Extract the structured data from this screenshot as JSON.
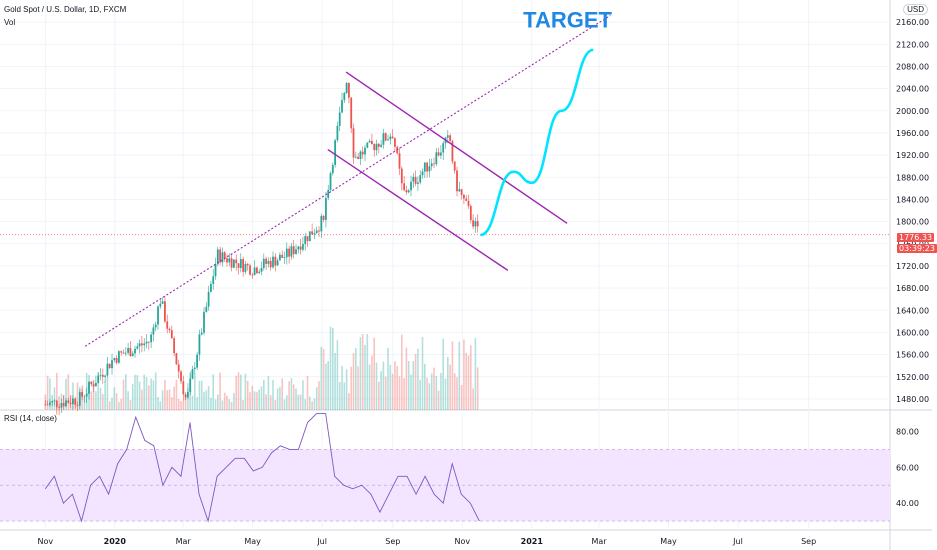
{
  "header": {
    "symbol": "Gold Spot / U.S. Dollar, 1D, FXCM",
    "volume": "Vol",
    "currency": "USD"
  },
  "rsi": {
    "label": "RSI (14, close)"
  },
  "badges": {
    "price": "1776.33",
    "countdown": "03:39:23"
  },
  "annotation": {
    "target": "TARGET"
  },
  "colors": {
    "up": "#26a69a",
    "down": "#ef5350",
    "rsi_line": "#7e57c2",
    "rsi_band": "#f3e5ff",
    "channel": "#9c27b0",
    "projection": "#00e5ff",
    "target": "#1e88e5"
  },
  "chart_data": [
    {
      "type": "candlestick",
      "title": "Gold Spot / U.S. Dollar, 1D, FXCM",
      "ylim": [
        1460,
        2200
      ],
      "yticks": [
        "2160.00",
        "2120.00",
        "2080.00",
        "2040.00",
        "2000.00",
        "1960.00",
        "1920.00",
        "1880.00",
        "1840.00",
        "1800.00",
        "1760.00",
        "1720.00",
        "1680.00",
        "1640.00",
        "1600.00",
        "1560.00",
        "1520.00",
        "1480.00"
      ],
      "xticks": [
        "Nov",
        "2020",
        "Mar",
        "May",
        "Jul",
        "Sep",
        "Nov",
        "2021",
        "Mar",
        "May",
        "Jul",
        "Sep"
      ],
      "close_path": [
        [
          "2019-11",
          1470
        ],
        [
          "2019-12",
          1480
        ],
        [
          "2020-01",
          1555
        ],
        [
          "2020-02",
          1585
        ],
        [
          "2020-02-24",
          1660
        ],
        [
          "2020-03-18",
          1475
        ],
        [
          "2020-04-14",
          1740
        ],
        [
          "2020-05",
          1715
        ],
        [
          "2020-06",
          1740
        ],
        [
          "2020-07",
          1800
        ],
        [
          "2020-07-28",
          1960
        ],
        [
          "2020-08-06",
          2065
        ],
        [
          "2020-08-12",
          1915
        ],
        [
          "2020-09",
          1960
        ],
        [
          "2020-09-24",
          1850
        ],
        [
          "2020-10",
          1900
        ],
        [
          "2020-11-04",
          1950
        ],
        [
          "2020-11-09",
          1870
        ],
        [
          "2020-11-30",
          1776
        ]
      ],
      "last_price": 1776.33,
      "projection": [
        [
          "2020-12-01",
          1776
        ],
        [
          "2020-12-30",
          1890
        ],
        [
          "2021-01-15",
          1870
        ],
        [
          "2021-02-10",
          2000
        ],
        [
          "2021-03-10",
          2110
        ]
      ],
      "annotation": "TARGET"
    },
    {
      "type": "line",
      "title": "RSI (14, close)",
      "ylim": [
        25,
        92
      ],
      "yticks": [
        "80.00",
        "60.00",
        "40.00"
      ],
      "band": [
        30,
        70
      ],
      "values": [
        48,
        55,
        40,
        45,
        30,
        50,
        55,
        45,
        62,
        70,
        88,
        75,
        72,
        50,
        60,
        55,
        85,
        45,
        30,
        55,
        60,
        65,
        65,
        58,
        60,
        68,
        72,
        70,
        70,
        85,
        90,
        90,
        55,
        50,
        48,
        50,
        45,
        35,
        45,
        55,
        55,
        45,
        55,
        45,
        40,
        62,
        45,
        40,
        30
      ]
    }
  ]
}
